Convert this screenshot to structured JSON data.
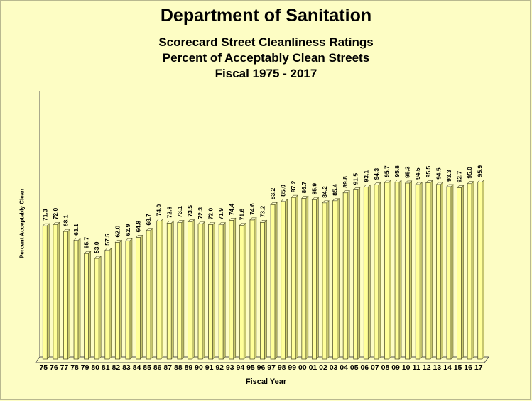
{
  "chart_data": {
    "type": "bar",
    "title": "Department of Sanitation",
    "subtitle_lines": [
      "Scorecard Street Cleanliness Ratings",
      " Percent of Acceptably Clean Streets",
      "Fiscal 1975 - 2017"
    ],
    "xlabel": "Fiscal Year",
    "ylabel": "Percent Acceptably Clean",
    "ylim": [
      0,
      100
    ],
    "grid": false,
    "categories": [
      "75",
      "76",
      "77",
      "78",
      "79",
      "80",
      "81",
      "82",
      "83",
      "84",
      "85",
      "86",
      "87",
      "88",
      "89",
      "90",
      "91",
      "92",
      "93",
      "94",
      "95",
      "96",
      "97",
      "98",
      "99",
      "00",
      "01",
      "02",
      "03",
      "04",
      "05",
      "06",
      "07",
      "08",
      "09",
      "10",
      "11",
      "12",
      "13",
      "14",
      "15",
      "16",
      "17"
    ],
    "values": [
      71.3,
      72.0,
      68.1,
      63.1,
      55.7,
      53.0,
      57.5,
      62.0,
      62.9,
      64.8,
      68.7,
      74.0,
      72.8,
      73.1,
      73.5,
      72.3,
      72.0,
      71.9,
      74.4,
      71.6,
      74.6,
      73.2,
      83.2,
      85.0,
      87.2,
      86.7,
      85.9,
      84.2,
      85.4,
      89.8,
      91.5,
      93.1,
      94.3,
      95.7,
      95.8,
      95.3,
      94.5,
      95.5,
      94.5,
      93.3,
      92.7,
      95.0,
      95.9
    ],
    "value_labels": [
      "71.3",
      "72.0",
      "68.1",
      "63.1",
      "55.7",
      "53.0",
      "57.5",
      "62.0",
      "62.9",
      "64.8",
      "68.7",
      "74.0",
      "72.8",
      "73.1",
      "73.5",
      "72.3",
      "72.0",
      "71.9",
      "74.4",
      "71.6",
      "74.6",
      "73.2",
      "83.2",
      "85.0",
      "87.2",
      "86.7",
      "85.9",
      "84.2",
      "85.4",
      "89.8",
      "91.5",
      "93.1",
      "94.3",
      "95.7",
      "95.8",
      "95.3",
      "94.5",
      "95.5",
      "94.5",
      "93.3",
      "92.7",
      "95.0",
      "95.9"
    ],
    "bar_color": "#ffff99",
    "bar_outline": "#5a5a30"
  }
}
